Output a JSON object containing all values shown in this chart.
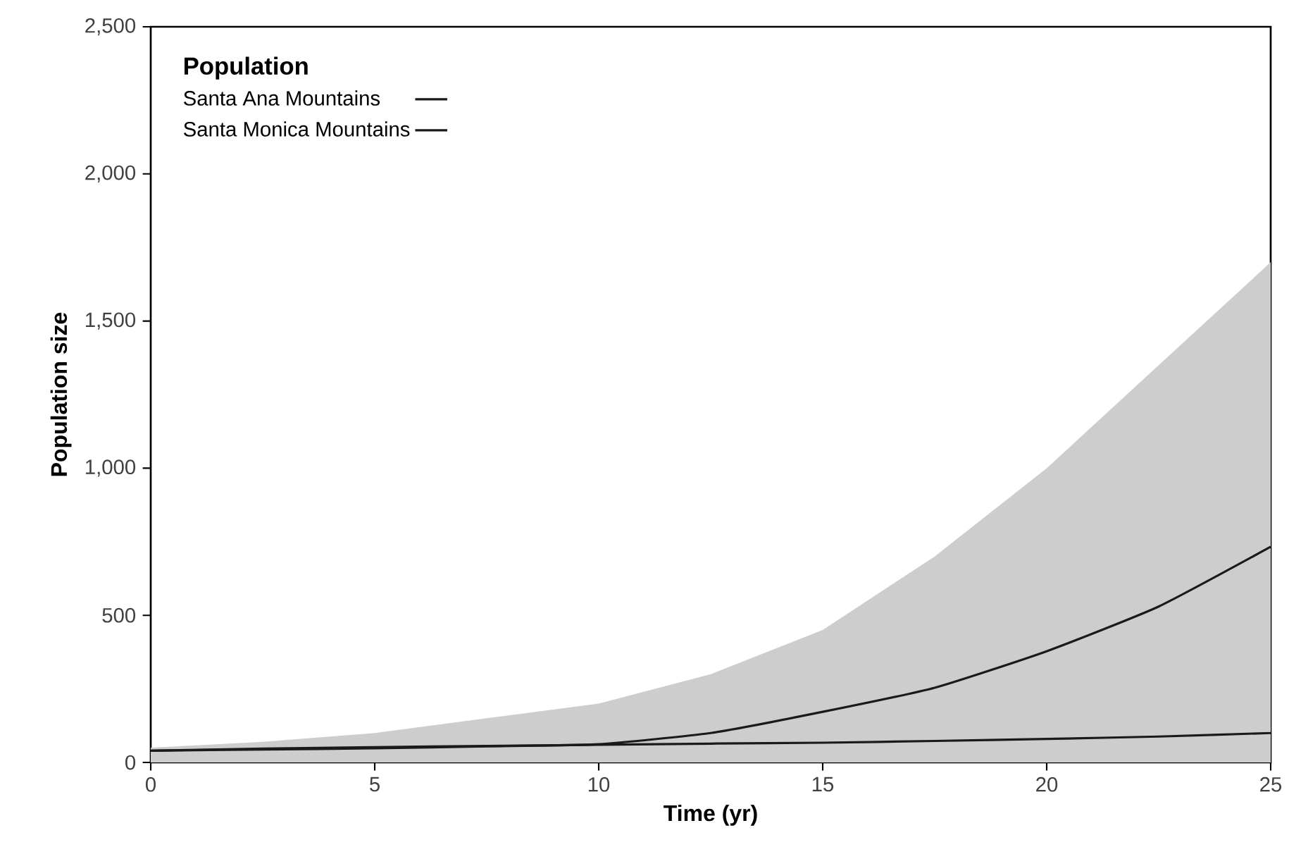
{
  "chart_data": {
    "type": "line",
    "xlabel": "Time (yr)",
    "ylabel": "Population size",
    "legend_title": "Population",
    "legend": "top left",
    "x": [
      0,
      2.5,
      5,
      7.5,
      10,
      12.5,
      15,
      17.5,
      20,
      22.5,
      25
    ],
    "series": [
      {
        "name": "Santa Ana Mountains",
        "color": "#1a1a1a",
        "values": [
          40,
          44,
          48,
          55,
          62,
          100,
          172,
          254,
          378,
          530,
          733
        ],
        "lower": [
          0,
          0,
          0,
          0,
          0,
          0,
          0,
          0,
          0,
          0,
          0
        ],
        "upper": [
          50,
          70,
          100,
          150,
          200,
          300,
          450,
          700,
          1000,
          1350,
          1700
        ]
      },
      {
        "name": "Santa Monica Mountains",
        "color": "#1a1a1a",
        "values": [
          40,
          47,
          52,
          56,
          60,
          64,
          67,
          73,
          80,
          88,
          100
        ]
      }
    ],
    "xlim": [
      0,
      25
    ],
    "ylim": [
      0,
      2500
    ],
    "xticks": [
      0,
      5,
      10,
      15,
      20,
      25
    ],
    "yticks": [
      0,
      {
        "value": 500,
        "label": "500"
      },
      {
        "value": 1000,
        "label": "1,000"
      },
      {
        "value": 1500,
        "label": "1,500"
      },
      {
        "value": 2000,
        "label": "2,000"
      },
      {
        "value": 2500,
        "label": "2,500"
      }
    ]
  }
}
